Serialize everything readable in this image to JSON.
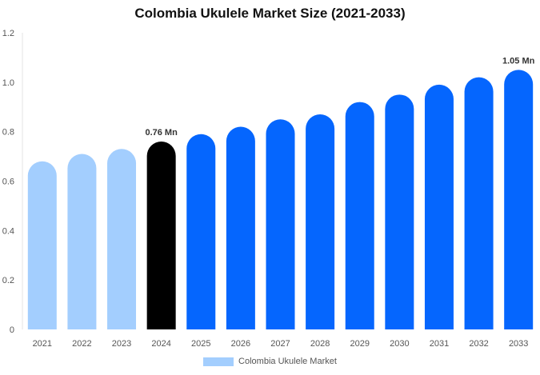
{
  "chart_data": {
    "type": "bar",
    "title": "Colombia Ukulele Market Size (2021-2033)",
    "categories": [
      "2021",
      "2022",
      "2023",
      "2024",
      "2025",
      "2026",
      "2027",
      "2028",
      "2029",
      "2030",
      "2031",
      "2032",
      "2033"
    ],
    "series": [
      {
        "name": "Colombia Ukulele Market",
        "values": [
          0.68,
          0.71,
          0.73,
          0.76,
          0.79,
          0.82,
          0.85,
          0.87,
          0.92,
          0.95,
          0.99,
          1.02,
          1.05
        ]
      }
    ],
    "bar_colors": [
      "#a3cefe",
      "#a3cefe",
      "#a3cefe",
      "#000000",
      "#0566fe",
      "#0566fe",
      "#0566fe",
      "#0566fe",
      "#0566fe",
      "#0566fe",
      "#0566fe",
      "#0566fe",
      "#0566fe"
    ],
    "data_labels": [
      {
        "category": "2024",
        "text": "0.76 Mn"
      },
      {
        "category": "2033",
        "text": "1.05 Mn"
      }
    ],
    "yticks": [
      "0",
      "0.2",
      "0.4",
      "0.6",
      "0.8",
      "1.0",
      "1.2"
    ],
    "ylim": [
      0,
      1.2
    ],
    "xlabel": "",
    "ylabel": "",
    "grid": false,
    "legend": {
      "label": "Colombia Ukulele Market",
      "color": "#a3cefe",
      "position": "bottom-center"
    }
  }
}
